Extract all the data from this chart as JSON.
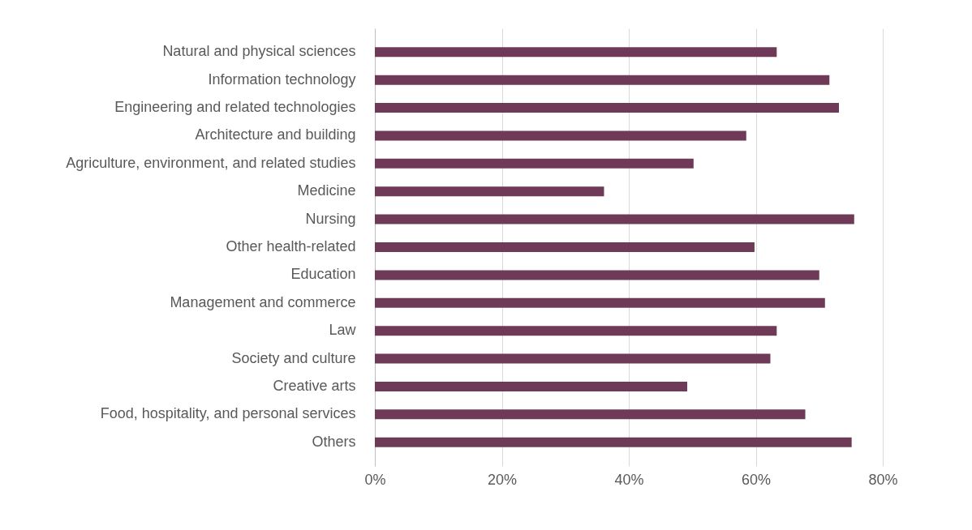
{
  "chart_data": {
    "type": "bar",
    "orientation": "horizontal",
    "categories": [
      "Natural and physical sciences",
      "Information technology",
      "Engineering and related technologies",
      "Architecture and building",
      "Agriculture, environment, and related studies",
      "Medicine",
      "Nursing",
      "Other health-related",
      "Education",
      "Management and commerce",
      "Law",
      "Society and culture",
      "Creative arts",
      "Food, hospitality, and personal services",
      "Others"
    ],
    "values": [
      63.3,
      71.6,
      73.1,
      58.5,
      50.2,
      36.1,
      75.5,
      59.8,
      70.0,
      70.9,
      63.3,
      62.3,
      49.2,
      67.8,
      75.1
    ],
    "color": "#6e3a58",
    "xlim": [
      0,
      80
    ],
    "xticks": [
      {
        "value": 0,
        "label": "0%"
      },
      {
        "value": 20,
        "label": "20%"
      },
      {
        "value": 40,
        "label": "40%"
      },
      {
        "value": 60,
        "label": "60%"
      },
      {
        "value": 80,
        "label": "80%"
      }
    ],
    "grid": "x"
  }
}
